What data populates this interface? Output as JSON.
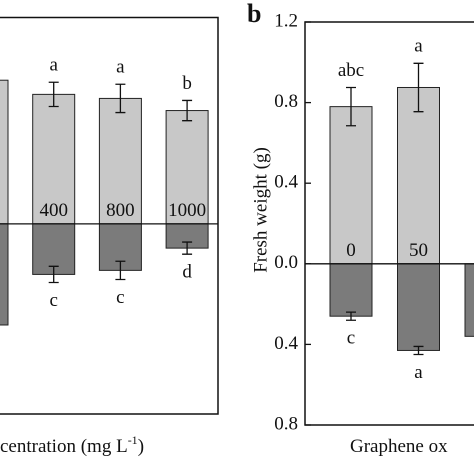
{
  "chart_data": [
    {
      "type": "bar",
      "panel": "a",
      "categories": [
        null,
        "400",
        "800",
        "1000"
      ],
      "ylim": [
        -0.94,
        1.02
      ],
      "series": [
        {
          "color": "#c8c8c8",
          "values": [
            0.71,
            0.64,
            0.62,
            0.56
          ],
          "errors": [
            null,
            0.06,
            0.07,
            0.05
          ],
          "letters": [
            null,
            "a",
            "a",
            "b"
          ]
        },
        {
          "color": "#7b7b7b",
          "values": [
            -0.5,
            -0.25,
            -0.23,
            -0.12
          ],
          "errors": [
            null,
            0.04,
            0.045,
            0.03
          ],
          "letters": [
            null,
            "c",
            "c",
            "d"
          ]
        }
      ],
      "xlabel": "centration (mg L",
      "xlabel_sup": "-1",
      "xlabel_end": ")"
    },
    {
      "type": "bar",
      "panel": "b",
      "title": "b",
      "ylabel": "Fresh weight (g)",
      "categories": [
        "0",
        "50",
        null
      ],
      "ylim": [
        -0.8,
        1.2
      ],
      "yticks": [
        {
          "value": 1.2,
          "label": "1.2"
        },
        {
          "value": 0.8,
          "label": "0.8"
        },
        {
          "value": 0.4,
          "label": "0.4"
        },
        {
          "value": 0,
          "label": "0.0"
        },
        {
          "value": -0.4,
          "label": "0.4"
        },
        {
          "value": -0.8,
          "label": "0.8"
        }
      ],
      "series": [
        {
          "color": "#c8c8c8",
          "values": [
            0.78,
            0.875,
            null
          ],
          "errors": [
            0.095,
            0.12,
            null
          ],
          "letters": [
            "abc",
            "a",
            null
          ]
        },
        {
          "color": "#7b7b7b",
          "values": [
            -0.26,
            -0.43,
            -0.36
          ],
          "errors": [
            0.02,
            0.02,
            null
          ],
          "letters": [
            "c",
            "a",
            null
          ]
        }
      ],
      "xlabel": "Graphene ox"
    }
  ]
}
